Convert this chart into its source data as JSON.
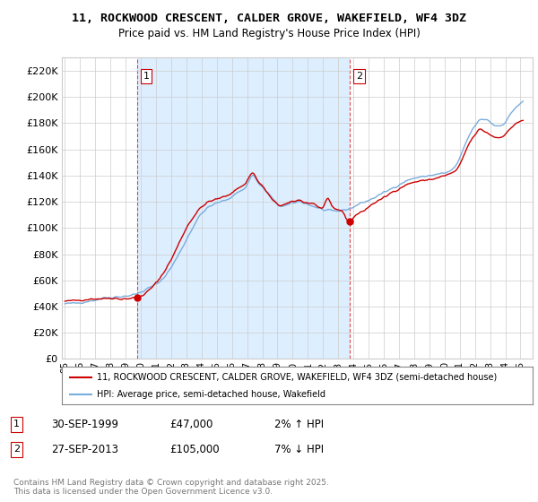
{
  "title": "11, ROCKWOOD CRESCENT, CALDER GROVE, WAKEFIELD, WF4 3DZ",
  "subtitle": "Price paid vs. HM Land Registry's House Price Index (HPI)",
  "ytick_values": [
    0,
    20000,
    40000,
    60000,
    80000,
    100000,
    120000,
    140000,
    160000,
    180000,
    200000,
    220000
  ],
  "ylim": [
    0,
    230000
  ],
  "legend_label_red": "11, ROCKWOOD CRESCENT, CALDER GROVE, WAKEFIELD, WF4 3DZ (semi-detached house)",
  "legend_label_blue": "HPI: Average price, semi-detached house, Wakefield",
  "sale1_label": "1",
  "sale1_date": "30-SEP-1999",
  "sale1_price": "£47,000",
  "sale1_hpi": "2% ↑ HPI",
  "sale2_label": "2",
  "sale2_date": "27-SEP-2013",
  "sale2_price": "£105,000",
  "sale2_hpi": "7% ↓ HPI",
  "footnote": "Contains HM Land Registry data © Crown copyright and database right 2025.\nThis data is licensed under the Open Government Licence v3.0.",
  "red_color": "#cc0000",
  "blue_color": "#7aaddb",
  "shade_color": "#ddeeff",
  "vline_color": "#cc0000",
  "grid_color": "#cccccc",
  "background_color": "#ffffff",
  "sale1_x": 1999.75,
  "sale1_y": 47000,
  "sale2_x": 2013.75,
  "sale2_y": 105000,
  "xlim_left": 1994.8,
  "xlim_right": 2025.8
}
